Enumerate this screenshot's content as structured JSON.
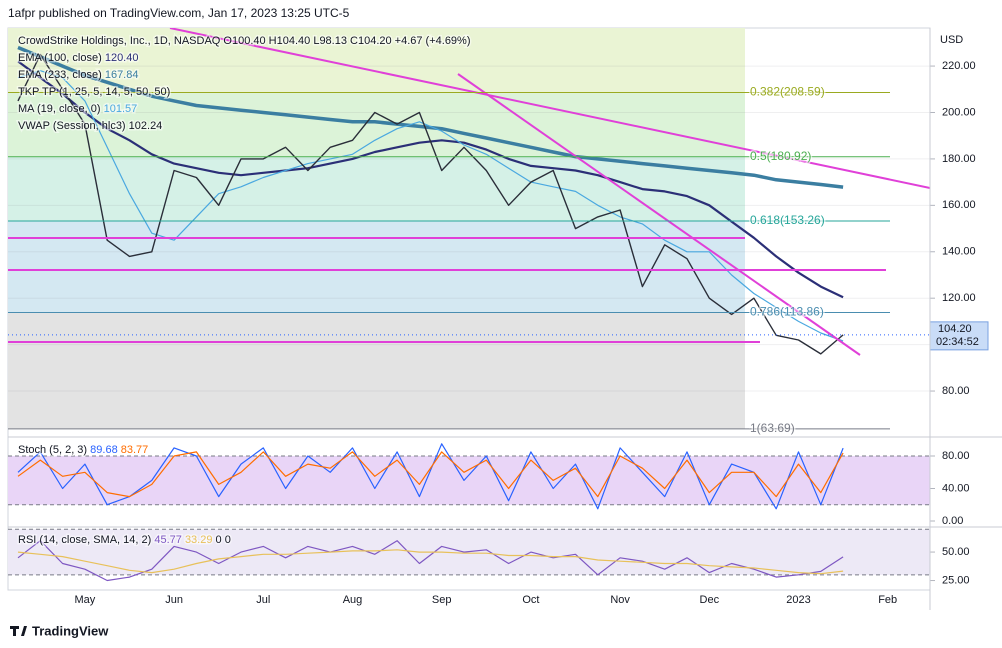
{
  "header": {
    "publisher": "1afpr published on TradingView.com, Jan 17, 2023 13:25 UTC-5",
    "currency": "USD"
  },
  "footer": {
    "brand": "TradingView"
  },
  "chart_data": [
    {
      "type": "line",
      "title": "CrowdStrike Holdings, Inc., 1D, NASDAQ",
      "quote": "O100.40 H104.40 L98.13 C104.20 +4.67 (+4.69%)",
      "categories": [
        null,
        null,
        null,
        "May",
        null,
        null,
        null,
        "Jun",
        null,
        null,
        null,
        "Jul",
        null,
        null,
        null,
        "Aug",
        null,
        null,
        null,
        "Sep",
        null,
        null,
        null,
        "Oct",
        null,
        null,
        null,
        "Nov",
        null,
        null,
        null,
        "Dec",
        null,
        null,
        null,
        "2023",
        null,
        null,
        null,
        "Feb",
        null
      ],
      "values": [
        205,
        225,
        210,
        195,
        145,
        138,
        140,
        175,
        172,
        160,
        180,
        180,
        185,
        175,
        185,
        188,
        200,
        195,
        200,
        175,
        185,
        175,
        160,
        170,
        175,
        150,
        155,
        158,
        125,
        143,
        137,
        120,
        113,
        120,
        104,
        102,
        96,
        104.2,
        null,
        null,
        null
      ],
      "color": "#2a2e39",
      "last_price": {
        "value": 104.2,
        "label": "104.20"
      },
      "countdown": "02:34:52",
      "series": [
        {
          "name": "EMA (100, close)",
          "legend_value": "120.40",
          "color": "#2b2f77",
          "width": 2.2,
          "values": [
            222,
            215,
            208,
            200,
            193,
            188,
            182,
            178,
            176,
            174,
            173,
            174,
            175,
            176,
            178,
            180,
            183,
            185,
            187,
            188,
            187,
            184,
            180,
            177,
            176,
            175,
            173,
            170,
            167,
            166,
            164,
            160,
            153,
            146,
            138,
            131,
            125,
            120.4,
            null,
            null,
            null
          ]
        },
        {
          "name": "EMA (233, close)",
          "legend_value": "167.84",
          "color": "#3b7ea1",
          "width": 3.5,
          "values": [
            228,
            224,
            220,
            216,
            213,
            210,
            207,
            205,
            203,
            202,
            201,
            200,
            199,
            198,
            197,
            196,
            196,
            195,
            194,
            193,
            191,
            189,
            187,
            185,
            183,
            181,
            180,
            179,
            178,
            177,
            176,
            175,
            174,
            173,
            171,
            170,
            169,
            167.84,
            null,
            null,
            null
          ]
        },
        {
          "name": "TKP TP (1, 25, 5, 14, 5, 50, 50)"
        },
        {
          "name": "MA (19, close, 0)",
          "legend_value": "101.57",
          "color": "#4aa8e0",
          "width": 1.2,
          "values": [
            215,
            218,
            215,
            205,
            185,
            165,
            148,
            145,
            155,
            165,
            168,
            172,
            175,
            178,
            180,
            182,
            188,
            193,
            196,
            192,
            186,
            182,
            176,
            170,
            168,
            166,
            160,
            155,
            152,
            145,
            140,
            140,
            130,
            122,
            116,
            110,
            105,
            101.57,
            null,
            null,
            null
          ]
        },
        {
          "name": "VWAP (Session, hlc3)",
          "legend_value": "102.24"
        }
      ],
      "fib_levels": [
        {
          "value": 208.59,
          "label": "0.382(208.59)",
          "color": "#9aaa20",
          "fill": "#eaf4d4"
        },
        {
          "value": 180.92,
          "label": "0.5(180.92)",
          "color": "#4caf50",
          "fill": "#dcf3d8"
        },
        {
          "value": 153.26,
          "label": "0.618(153.26)",
          "color": "#26a69a",
          "fill": "#d5f1e7"
        },
        {
          "value": 113.86,
          "label": "0.786(113.86)",
          "color": "#4a8db0",
          "fill": "#d4e8f2"
        },
        {
          "value": 63.69,
          "label": "1(63.69)",
          "color": "#787b86",
          "fill": "#e3e3e3"
        }
      ],
      "ylim": [
        60.2,
        236.4
      ],
      "yticks": [
        {
          "value": 80,
          "label": "80.00"
        },
        {
          "value": 100,
          "label": "100.00"
        },
        {
          "value": 120,
          "label": "120.00"
        },
        {
          "value": 140,
          "label": "140.00"
        },
        {
          "value": 160,
          "label": "160.00"
        },
        {
          "value": 180,
          "label": "180.00"
        },
        {
          "value": 200,
          "label": "200.00"
        },
        {
          "value": 220,
          "label": "220.00"
        }
      ],
      "grid": true
    },
    {
      "type": "line",
      "title": "Stoch (5, 2, 3)",
      "series": [
        {
          "legend_value": "89.68",
          "color": "#2962ff",
          "values": [
            60,
            85,
            40,
            70,
            20,
            30,
            50,
            90,
            80,
            30,
            70,
            90,
            40,
            80,
            60,
            90,
            40,
            85,
            30,
            95,
            50,
            80,
            25,
            85,
            40,
            70,
            15,
            90,
            60,
            30,
            85,
            20,
            70,
            60,
            15,
            85,
            20,
            89.68,
            null,
            null,
            null
          ]
        },
        {
          "legend_value": "83.77",
          "color": "#ff6d00",
          "values": [
            55,
            75,
            55,
            60,
            35,
            30,
            45,
            80,
            85,
            45,
            60,
            85,
            55,
            70,
            65,
            85,
            55,
            75,
            45,
            85,
            60,
            75,
            40,
            75,
            50,
            65,
            30,
            80,
            65,
            40,
            75,
            35,
            60,
            60,
            30,
            70,
            35,
            83.77,
            null,
            null,
            null
          ]
        }
      ],
      "bands": [
        20,
        80
      ],
      "band_fill": "#e9d5f7",
      "ylim": [
        -7.4,
        103.4
      ],
      "yticks": [
        {
          "value": 0,
          "label": "0.00"
        },
        {
          "value": 40,
          "label": "40.00"
        },
        {
          "value": 80,
          "label": "80.00"
        }
      ]
    },
    {
      "type": "line",
      "title": "RSI (14, close, SMA, 14, 2)",
      "legend_extra": [
        "0",
        "0"
      ],
      "series": [
        {
          "legend_value": "45.77",
          "color": "#7e57c2",
          "values": [
            45,
            60,
            40,
            35,
            25,
            28,
            35,
            55,
            50,
            40,
            50,
            55,
            45,
            55,
            50,
            55,
            48,
            60,
            40,
            55,
            50,
            52,
            40,
            50,
            45,
            48,
            30,
            45,
            42,
            35,
            45,
            32,
            40,
            35,
            28,
            30,
            33,
            45.77,
            null,
            null,
            null
          ]
        },
        {
          "legend_value": "33.29",
          "color": "#e8c15a",
          "values": [
            50,
            48,
            46,
            42,
            38,
            34,
            32,
            35,
            40,
            44,
            46,
            48,
            48,
            49,
            50,
            51,
            51,
            52,
            50,
            50,
            49,
            49,
            47,
            47,
            46,
            46,
            43,
            42,
            41,
            40,
            40,
            38,
            37,
            36,
            34,
            32,
            31,
            33.29,
            null,
            null,
            null
          ]
        }
      ],
      "bands": [
        30,
        70
      ],
      "band_fill": "#ede9f6",
      "ylim": [
        16.7,
        72
      ],
      "yticks": [
        {
          "value": 25,
          "label": "25.00"
        },
        {
          "value": 50,
          "label": "50.00"
        }
      ]
    }
  ]
}
